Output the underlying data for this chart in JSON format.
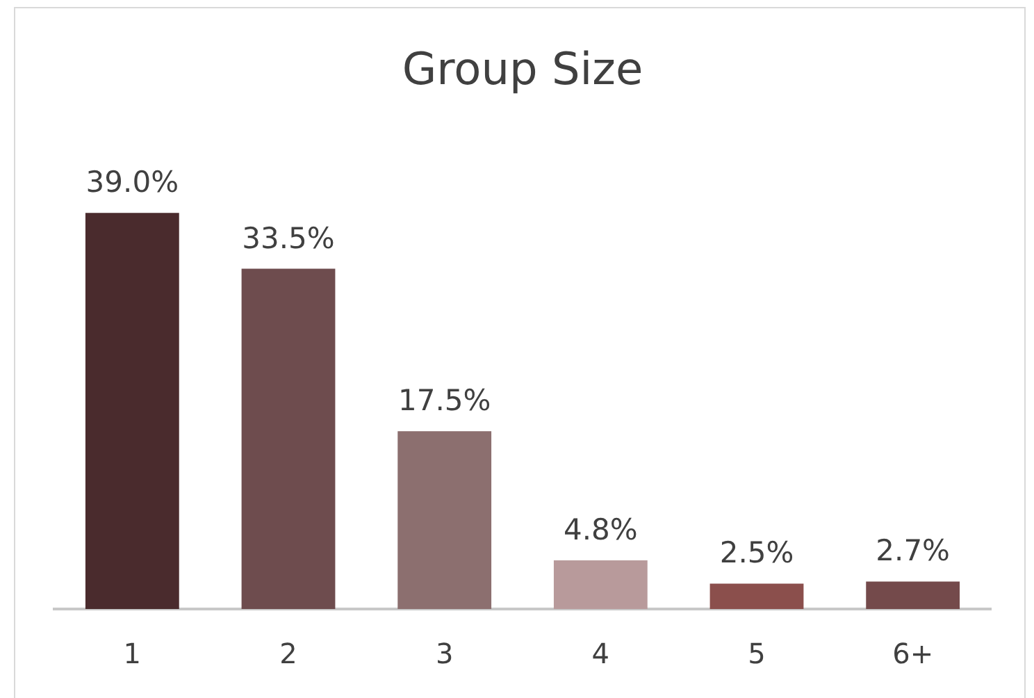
{
  "chart_data": {
    "type": "bar",
    "title": "Group Size",
    "categories": [
      "1",
      "2",
      "3",
      "4",
      "5",
      "6+"
    ],
    "values": [
      39.0,
      33.5,
      17.5,
      4.8,
      2.5,
      2.7
    ],
    "colors": [
      "#4a2b2d",
      "#6e4c4e",
      "#8c6f6f",
      "#b89a9b",
      "#8b4f4c",
      "#744a4b"
    ],
    "value_labels": [
      "39.0%",
      "33.5%",
      "17.5%",
      "4.8%",
      "2.5%",
      "2.7%"
    ]
  }
}
